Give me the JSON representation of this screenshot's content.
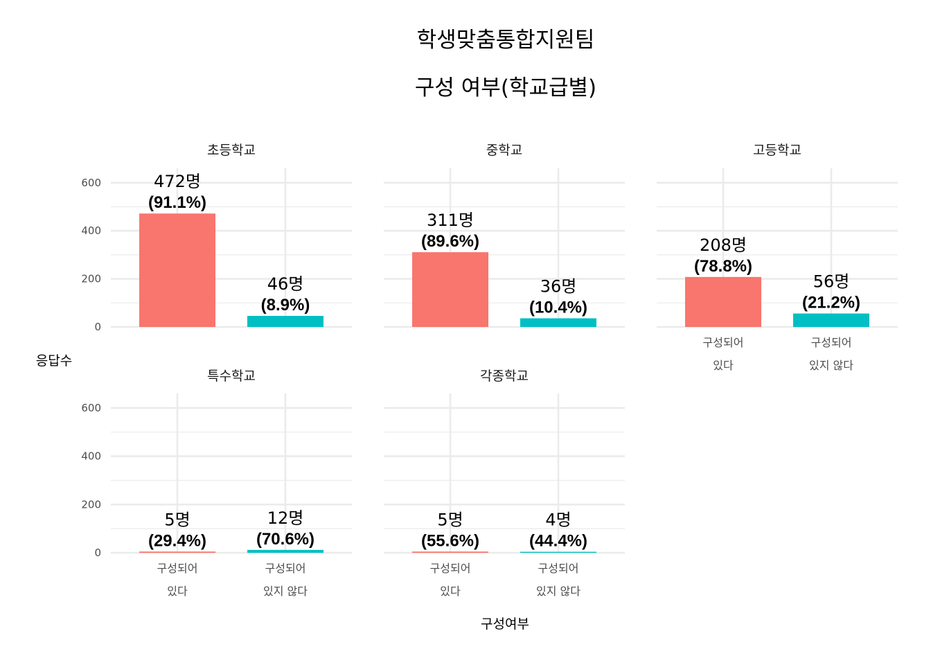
{
  "chart_data": {
    "type": "bar",
    "title_lines": [
      "학생맞춤통합지원팀",
      "구성 여부(학교급별)"
    ],
    "xlabel": "구성여부",
    "ylabel": "응답수",
    "ylim": [
      0,
      660
    ],
    "yticks": [
      "0",
      "200",
      "400",
      "600"
    ],
    "grid": true,
    "legend": "none",
    "categories": [
      [
        "구성되어",
        "있다"
      ],
      [
        "구성되어",
        "있지 않다"
      ]
    ],
    "colors": [
      "#F8766D",
      "#00BFC4"
    ],
    "facets": [
      {
        "name": "초등학교",
        "values": [
          472,
          46
        ],
        "counts": [
          "472명",
          "46명"
        ],
        "percents": [
          "(91.1%)",
          "(8.9%)"
        ]
      },
      {
        "name": "중학교",
        "values": [
          311,
          36
        ],
        "counts": [
          "311명",
          "36명"
        ],
        "percents": [
          "(89.6%)",
          "(10.4%)"
        ]
      },
      {
        "name": "고등학교",
        "values": [
          208,
          56
        ],
        "counts": [
          "208명",
          "56명"
        ],
        "percents": [
          "(78.8%)",
          "(21.2%)"
        ]
      },
      {
        "name": "특수학교",
        "values": [
          5,
          12
        ],
        "counts": [
          "5명",
          "12명"
        ],
        "percents": [
          "(29.4%)",
          "(70.6%)"
        ]
      },
      {
        "name": "각종학교",
        "values": [
          5,
          4
        ],
        "counts": [
          "5명",
          "4명"
        ],
        "percents": [
          "(55.6%)",
          "(44.4%)"
        ]
      }
    ]
  }
}
